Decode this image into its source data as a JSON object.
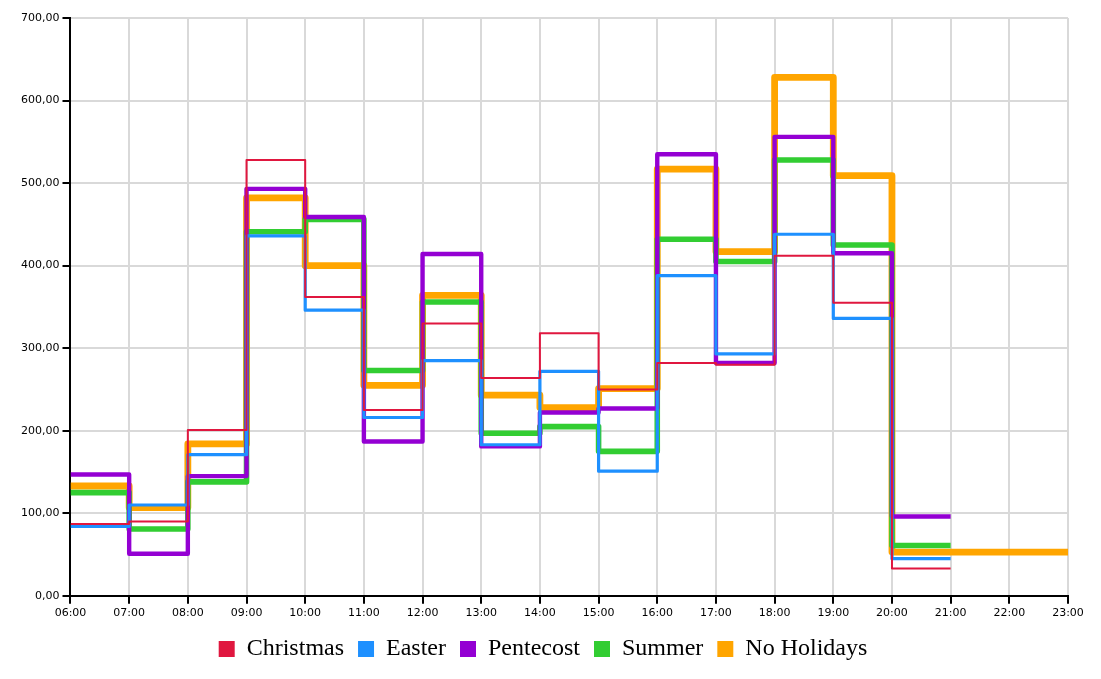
{
  "chart_data": {
    "type": "step",
    "x": [
      6,
      7,
      8,
      9,
      10,
      11,
      12,
      13,
      14,
      15,
      16,
      17,
      18,
      19,
      20,
      21,
      22,
      23
    ],
    "series": [
      {
        "name": "Christmas",
        "color": "#e0173f",
        "values": [
          87,
          90,
          201,
          528,
          362,
          225,
          330,
          264,
          318,
          250,
          282,
          280,
          412,
          355,
          33,
          33,
          null,
          null
        ]
      },
      {
        "name": "Easter",
        "color": "#1e90ff",
        "values": [
          84,
          110,
          171,
          436,
          346,
          216,
          285,
          183,
          272,
          151,
          388,
          293,
          438,
          336,
          45,
          45,
          null,
          null
        ]
      },
      {
        "name": "Pentecost",
        "color": "#9400d3",
        "values": [
          147,
          51,
          145,
          493,
          459,
          187,
          414,
          181,
          222,
          227,
          535,
          282,
          556,
          415,
          96,
          96,
          null,
          null
        ]
      },
      {
        "name": "Summer",
        "color": "#32cd32",
        "values": [
          125,
          81,
          138,
          441,
          456,
          273,
          356,
          197,
          205,
          175,
          432,
          405,
          528,
          425,
          61,
          61,
          null,
          null
        ]
      },
      {
        "name": "No Holidays",
        "color": "#ffa500",
        "values": [
          133,
          107,
          184,
          482,
          400,
          255,
          364,
          243,
          228,
          251,
          517,
          417,
          628,
          509,
          53,
          53,
          53,
          53
        ]
      }
    ],
    "xlim": [
      6,
      23
    ],
    "xticks": [
      {
        "value": 6,
        "label": "06:00"
      },
      {
        "value": 7,
        "label": "07:00"
      },
      {
        "value": 8,
        "label": "08:00"
      },
      {
        "value": 9,
        "label": "09:00"
      },
      {
        "value": 10,
        "label": "10:00"
      },
      {
        "value": 11,
        "label": "11:00"
      },
      {
        "value": 12,
        "label": "12:00"
      },
      {
        "value": 13,
        "label": "13:00"
      },
      {
        "value": 14,
        "label": "14:00"
      },
      {
        "value": 15,
        "label": "15:00"
      },
      {
        "value": 16,
        "label": "16:00"
      },
      {
        "value": 17,
        "label": "17:00"
      },
      {
        "value": 18,
        "label": "18:00"
      },
      {
        "value": 19,
        "label": "19:00"
      },
      {
        "value": 20,
        "label": "20:00"
      },
      {
        "value": 21,
        "label": "21:00"
      },
      {
        "value": 22,
        "label": "22:00"
      },
      {
        "value": 23,
        "label": "23:00"
      }
    ],
    "ylim": [
      0,
      700
    ],
    "yticks": [
      {
        "value": 0,
        "label": "0,00"
      },
      {
        "value": 100,
        "label": "100,00"
      },
      {
        "value": 200,
        "label": "200,00"
      },
      {
        "value": 300,
        "label": "300,00"
      },
      {
        "value": 400,
        "label": "400,00"
      },
      {
        "value": 500,
        "label": "500,00"
      },
      {
        "value": 600,
        "label": "600,00"
      },
      {
        "value": 700,
        "label": "700,00"
      }
    ],
    "grid": true,
    "legend": "bottom",
    "marker": "none",
    "line_style": "solid"
  }
}
